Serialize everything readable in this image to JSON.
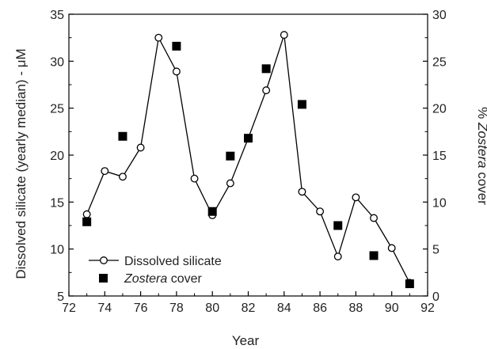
{
  "chart_data": {
    "type": "line",
    "x_axis": {
      "label": "Year",
      "range": [
        72,
        92
      ],
      "ticks": [
        "72",
        "74",
        "76",
        "78",
        "80",
        "82",
        "84",
        "86",
        "88",
        "90",
        "92"
      ]
    },
    "y_left": {
      "label": "Dissolved silicate (yearly median) - μM",
      "range": [
        5,
        35
      ],
      "ticks": [
        "5",
        "10",
        "15",
        "20",
        "25",
        "30",
        "35"
      ]
    },
    "y_right": {
      "label_prefix": "% ",
      "label_italic": "Zostera",
      "label_suffix": " cover",
      "range": [
        0,
        30
      ],
      "ticks": [
        "0",
        "5",
        "10",
        "15",
        "20",
        "25",
        "30"
      ]
    },
    "series": [
      {
        "name": "Dissolved silicate",
        "axis": "left",
        "style": "line-open-circle",
        "x": [
          73,
          74,
          75,
          76,
          77,
          78,
          79,
          80,
          81,
          82,
          83,
          84,
          85,
          86,
          87,
          88,
          89,
          90,
          91
        ],
        "y": [
          13.7,
          18.3,
          17.7,
          20.8,
          32.5,
          28.9,
          17.5,
          13.6,
          17.0,
          21.8,
          26.9,
          32.8,
          16.1,
          14.0,
          9.2,
          15.5,
          13.3,
          10.1,
          6.4
        ]
      },
      {
        "name_italic": "Zostera",
        "name_suffix": " cover",
        "axis": "right",
        "style": "filled-square",
        "x": [
          73,
          75,
          78,
          80,
          81,
          82,
          83,
          85,
          87,
          89,
          91
        ],
        "y": [
          7.9,
          17.0,
          26.6,
          9.0,
          14.9,
          16.8,
          24.2,
          20.4,
          7.5,
          4.3,
          1.3
        ]
      }
    ],
    "legend": {
      "position": "bottom-left"
    },
    "grid": false
  }
}
